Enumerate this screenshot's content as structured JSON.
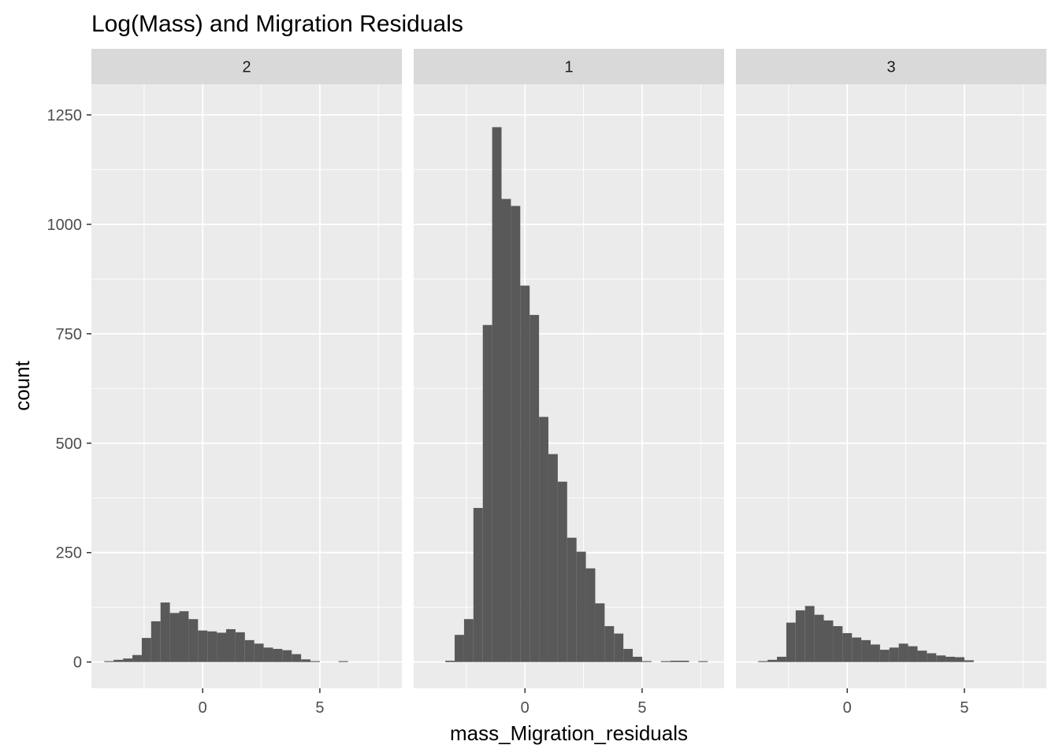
{
  "chart_data": {
    "type": "bar",
    "title": "Log(Mass) and Migration Residuals",
    "xlabel": "mass_Migration_residuals",
    "ylabel": "count",
    "xlim": [
      -4.75,
      8.5
    ],
    "ylim": [
      -60,
      1320
    ],
    "x_ticks": [
      0,
      5
    ],
    "x_tick_labels": [
      "0",
      "5"
    ],
    "y_ticks": [
      0,
      250,
      500,
      750,
      1000,
      1250
    ],
    "y_tick_labels": [
      "0",
      "250",
      "500",
      "750",
      "1000",
      "1250"
    ],
    "grid": true,
    "bin_width": 0.4,
    "panels": [
      {
        "label": "2",
        "bins": [
          {
            "x": -4.0,
            "y": 2
          },
          {
            "x": -3.6,
            "y": 5
          },
          {
            "x": -3.2,
            "y": 8
          },
          {
            "x": -2.8,
            "y": 16
          },
          {
            "x": -2.4,
            "y": 55
          },
          {
            "x": -2.0,
            "y": 93
          },
          {
            "x": -1.6,
            "y": 136
          },
          {
            "x": -1.2,
            "y": 112
          },
          {
            "x": -0.8,
            "y": 116
          },
          {
            "x": -0.4,
            "y": 98
          },
          {
            "x": 0.0,
            "y": 72
          },
          {
            "x": 0.4,
            "y": 70
          },
          {
            "x": 0.8,
            "y": 67
          },
          {
            "x": 1.2,
            "y": 75
          },
          {
            "x": 1.6,
            "y": 68
          },
          {
            "x": 2.0,
            "y": 50
          },
          {
            "x": 2.4,
            "y": 42
          },
          {
            "x": 2.8,
            "y": 33
          },
          {
            "x": 3.2,
            "y": 30
          },
          {
            "x": 3.6,
            "y": 27
          },
          {
            "x": 4.0,
            "y": 18
          },
          {
            "x": 4.4,
            "y": 6
          },
          {
            "x": 4.8,
            "y": 2
          },
          {
            "x": 6.0,
            "y": 2
          }
        ]
      },
      {
        "label": "1",
        "bins": [
          {
            "x": -3.2,
            "y": 3
          },
          {
            "x": -2.8,
            "y": 62
          },
          {
            "x": -2.4,
            "y": 98
          },
          {
            "x": -2.0,
            "y": 352
          },
          {
            "x": -1.6,
            "y": 770
          },
          {
            "x": -1.2,
            "y": 1222
          },
          {
            "x": -0.8,
            "y": 1058
          },
          {
            "x": -0.4,
            "y": 1042
          },
          {
            "x": 0.0,
            "y": 860
          },
          {
            "x": 0.4,
            "y": 793
          },
          {
            "x": 0.8,
            "y": 560
          },
          {
            "x": 1.2,
            "y": 475
          },
          {
            "x": 1.6,
            "y": 412
          },
          {
            "x": 2.0,
            "y": 284
          },
          {
            "x": 2.4,
            "y": 252
          },
          {
            "x": 2.8,
            "y": 214
          },
          {
            "x": 3.2,
            "y": 134
          },
          {
            "x": 3.6,
            "y": 82
          },
          {
            "x": 4.0,
            "y": 65
          },
          {
            "x": 4.4,
            "y": 30
          },
          {
            "x": 4.8,
            "y": 12
          },
          {
            "x": 5.2,
            "y": 2
          },
          {
            "x": 6.0,
            "y": 2
          },
          {
            "x": 6.4,
            "y": 3
          },
          {
            "x": 6.8,
            "y": 3
          },
          {
            "x": 7.6,
            "y": 2
          }
        ]
      },
      {
        "label": "3",
        "bins": [
          {
            "x": -3.6,
            "y": 2
          },
          {
            "x": -3.2,
            "y": 5
          },
          {
            "x": -2.8,
            "y": 12
          },
          {
            "x": -2.4,
            "y": 90
          },
          {
            "x": -2.0,
            "y": 118
          },
          {
            "x": -1.6,
            "y": 128
          },
          {
            "x": -1.2,
            "y": 108
          },
          {
            "x": -0.8,
            "y": 95
          },
          {
            "x": -0.4,
            "y": 82
          },
          {
            "x": 0.0,
            "y": 66
          },
          {
            "x": 0.4,
            "y": 56
          },
          {
            "x": 0.8,
            "y": 50
          },
          {
            "x": 1.2,
            "y": 40
          },
          {
            "x": 1.6,
            "y": 28
          },
          {
            "x": 2.0,
            "y": 33
          },
          {
            "x": 2.4,
            "y": 42
          },
          {
            "x": 2.8,
            "y": 36
          },
          {
            "x": 3.2,
            "y": 26
          },
          {
            "x": 3.6,
            "y": 20
          },
          {
            "x": 4.0,
            "y": 15
          },
          {
            "x": 4.4,
            "y": 12
          },
          {
            "x": 4.8,
            "y": 11
          },
          {
            "x": 5.2,
            "y": 4
          }
        ]
      }
    ],
    "colors": {
      "bar": "#595959",
      "panel_bg": "#ebebeb",
      "strip_bg": "#d9d9d9",
      "grid_major": "#ffffff",
      "tick": "#333333"
    }
  }
}
